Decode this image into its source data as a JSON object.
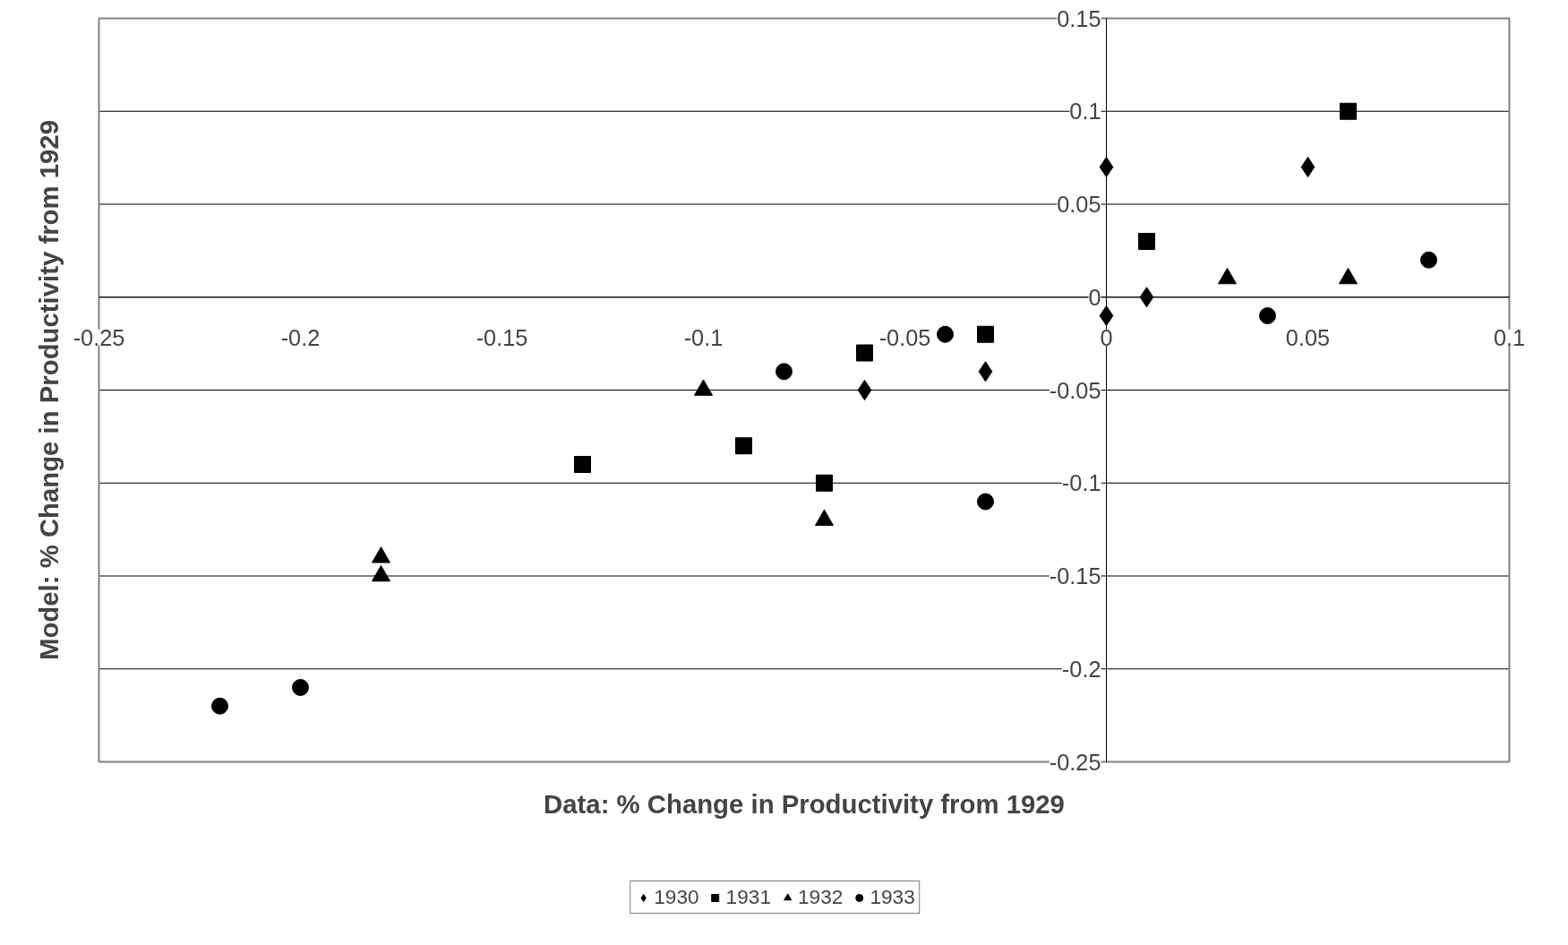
{
  "chart_data": {
    "type": "scatter",
    "xlabel": "Data: % Change in Productivity from 1929",
    "ylabel": "Model: % Change in Productivity from 1929",
    "xlim": [
      -0.25,
      0.1
    ],
    "ylim": [
      -0.25,
      0.15
    ],
    "xticks": [
      -0.25,
      -0.2,
      -0.15,
      -0.1,
      -0.05,
      0,
      0.05,
      0.1
    ],
    "yticks": [
      -0.25,
      -0.2,
      -0.15,
      -0.1,
      -0.05,
      0,
      0.05,
      0.1,
      0.15
    ],
    "grid": "y",
    "legend": "bottom",
    "series": [
      {
        "name": "1930",
        "color": "#000000",
        "marker": "diamond",
        "x": [
          0,
          0,
          0.01,
          0.05,
          -0.06,
          -0.03
        ],
        "values": [
          0.07,
          -0.01,
          0,
          0.07,
          -0.05,
          -0.04
        ]
      },
      {
        "name": "1931",
        "color": "#000000",
        "marker": "square",
        "x": [
          0.06,
          0.01,
          -0.03,
          -0.06,
          -0.09,
          -0.07,
          -0.13
        ],
        "values": [
          0.1,
          0.03,
          -0.02,
          -0.03,
          -0.08,
          -0.1,
          -0.09
        ]
      },
      {
        "name": "1932",
        "color": "#000000",
        "marker": "triangle",
        "x": [
          0.03,
          0.06,
          -0.1,
          -0.07,
          -0.18,
          -0.18
        ],
        "values": [
          0.01,
          0.01,
          -0.05,
          -0.12,
          -0.14,
          -0.15
        ]
      },
      {
        "name": "1933",
        "color": "#000000",
        "marker": "circle",
        "x": [
          0.08,
          0.04,
          -0.04,
          -0.08,
          -0.03,
          -0.2,
          -0.22
        ],
        "values": [
          0.02,
          -0.01,
          -0.02,
          -0.04,
          -0.11,
          -0.21,
          -0.22
        ]
      }
    ]
  }
}
